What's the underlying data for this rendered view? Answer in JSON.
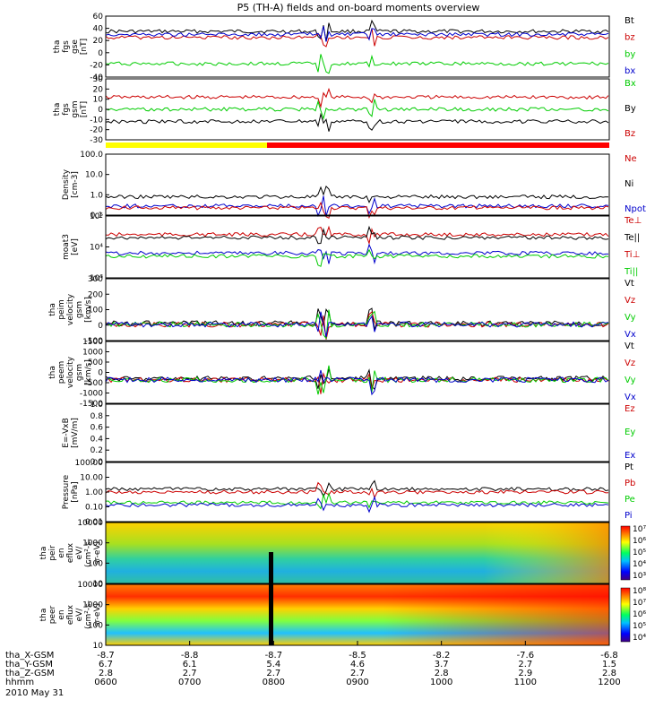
{
  "title": "P5 (TH-A) fields and on-board moments overview",
  "chart_data": {
    "type": "line",
    "x_ticks": [
      "0600",
      "0700",
      "0800",
      "0900",
      "1000",
      "1100",
      "1200"
    ],
    "orbit_rows": [
      {
        "label": "tha_X-GSM",
        "values": [
          "-8.7",
          "-8.8",
          "-8.7",
          "-8.5",
          "-8.2",
          "-7.6",
          "-6.8"
        ]
      },
      {
        "label": "tha_Y-GSM",
        "values": [
          "6.7",
          "6.1",
          "5.4",
          "4.6",
          "3.7",
          "2.7",
          "1.5"
        ]
      },
      {
        "label": "tha_Z-GSM",
        "values": [
          "2.8",
          "2.7",
          "2.7",
          "2.7",
          "2.8",
          "2.9",
          "2.8"
        ]
      },
      {
        "label": "hhmm",
        "values": [
          "0600",
          "0700",
          "0800",
          "0900",
          "1000",
          "1100",
          "1200"
        ]
      }
    ],
    "date_label": "2010 May 31",
    "panels": [
      {
        "id": "fgs_gse",
        "ylabel": [
          "tha",
          "fgs",
          "gse",
          "[nT]"
        ],
        "ticks": [
          "60",
          "40",
          "20",
          "0",
          "-20",
          "-40"
        ],
        "legend": [
          {
            "text": "Bt",
            "color": "#000000"
          },
          {
            "text": "bz",
            "color": "#cc0000"
          },
          {
            "text": "by",
            "color": "#00cc00"
          },
          {
            "text": "bx",
            "color": "#0000cc"
          }
        ]
      },
      {
        "id": "fgs_gsm",
        "ylabel": [
          "tha",
          "fgs",
          "gsm",
          "[nT]"
        ],
        "ticks": [
          "30",
          "20",
          "10",
          "0",
          "-10",
          "-20",
          "-30"
        ],
        "legend": [
          {
            "text": "Bx",
            "color": "#00cc00"
          },
          {
            "text": "By",
            "color": "#000000"
          },
          {
            "text": "Bz",
            "color": "#cc0000"
          }
        ]
      },
      {
        "id": "density",
        "ylabel": [
          "Density",
          "[cm-3]"
        ],
        "ticks": [
          "100.0",
          "10.0",
          "1.0",
          "0.1"
        ],
        "legend": [
          {
            "text": "Ne",
            "color": "#cc0000"
          },
          {
            "text": "Ni",
            "color": "#000000"
          },
          {
            "text": "Npot",
            "color": "#0000cc"
          }
        ]
      },
      {
        "id": "temperature",
        "ylabel": [
          "moat3",
          "[eV]"
        ],
        "ticks": [
          "10⁵",
          "10⁴",
          "10³"
        ],
        "legend": [
          {
            "text": "Te⊥",
            "color": "#cc0000"
          },
          {
            "text": "Te||",
            "color": "#000000"
          },
          {
            "text": "Ti⊥",
            "color": "#cc0000"
          },
          {
            "text": "Ti||",
            "color": "#00cc00"
          }
        ]
      },
      {
        "id": "peim_velocity",
        "ylabel": [
          "tha",
          "peim",
          "velocity",
          "gsm",
          "[km/s]"
        ],
        "ticks": [
          "300",
          "200",
          "100",
          "0",
          "-100"
        ],
        "legend": [
          {
            "text": "Vt",
            "color": "#000000"
          },
          {
            "text": "Vz",
            "color": "#cc0000"
          },
          {
            "text": "Vy",
            "color": "#00cc00"
          },
          {
            "text": "Vx",
            "color": "#0000cc"
          }
        ]
      },
      {
        "id": "peem_velocity",
        "ylabel": [
          "tha",
          "peem",
          "velocity",
          "gsm",
          "[km/s]"
        ],
        "ticks": [
          "1500",
          "1000",
          "500",
          "0",
          "-500",
          "-1000",
          "-1500"
        ],
        "legend": [
          {
            "text": "Vt",
            "color": "#000000"
          },
          {
            "text": "Vz",
            "color": "#cc0000"
          },
          {
            "text": "Vy",
            "color": "#00cc00"
          },
          {
            "text": "Vx",
            "color": "#0000cc"
          }
        ]
      },
      {
        "id": "efield",
        "ylabel": [
          "E=-VxB",
          "[mV/m]"
        ],
        "ticks": [
          "1.0",
          "0.8",
          "0.6",
          "0.4",
          "0.2",
          "0.0"
        ],
        "legend": [
          {
            "text": "Ez",
            "color": "#cc0000"
          },
          {
            "text": "Ey",
            "color": "#00cc00"
          },
          {
            "text": "Ex",
            "color": "#0000cc"
          }
        ]
      },
      {
        "id": "pressure",
        "ylabel": [
          "Pressure",
          "[nPa]"
        ],
        "ticks": [
          "100.00",
          "10.00",
          "1.00",
          "0.10",
          "0.01"
        ],
        "legend": [
          {
            "text": "Pt",
            "color": "#000000"
          },
          {
            "text": "Pb",
            "color": "#cc0000"
          },
          {
            "text": "Pe",
            "color": "#00cc00"
          },
          {
            "text": "Pi",
            "color": "#0000cc"
          }
        ]
      },
      {
        "id": "peir_spec",
        "ylabel": [
          "tha",
          "peir",
          "en",
          "eflux",
          "eV/",
          "(cm²-s-",
          "sr-eV)"
        ],
        "ticks": [
          "10000",
          "1000",
          "100",
          "10"
        ],
        "colorbar": [
          "10⁷",
          "10⁶",
          "10⁵",
          "10⁴",
          "10³"
        ]
      },
      {
        "id": "peer_spec",
        "ylabel": [
          "tha",
          "peer",
          "en",
          "eflux",
          "eV/",
          "(cm²-s-",
          "sr-eV)"
        ],
        "ticks": [
          "10000",
          "1000",
          "100",
          "10"
        ],
        "colorbar": [
          "10⁸",
          "10⁷",
          "10⁶",
          "10⁵",
          "10⁴"
        ]
      }
    ]
  }
}
